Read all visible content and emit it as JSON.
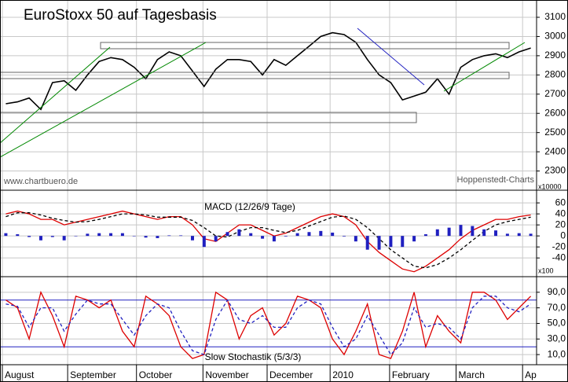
{
  "chart_data": [
    {
      "type": "line",
      "title": "EuroStoxx 50 auf Tagesbasis",
      "source": "www.chartbuero.de",
      "provider": "Hoppenstedt-Charts",
      "x": [
        0,
        1,
        2,
        3,
        4,
        5,
        6,
        7,
        8,
        9,
        10,
        11,
        12,
        13,
        14,
        15,
        16,
        17,
        18,
        19,
        20,
        21,
        22,
        23,
        24,
        25,
        26,
        27,
        28,
        29,
        30,
        31,
        32,
        33,
        34,
        35,
        36,
        37,
        38,
        39,
        40,
        41,
        42,
        43,
        44,
        45
      ],
      "xlim": [
        -0.5,
        45.5
      ],
      "ylim": [
        2200,
        3190
      ],
      "yticks": [
        2300,
        2400,
        2500,
        2600,
        2700,
        2800,
        2900,
        3000,
        3100
      ],
      "grid": true,
      "series": [
        {
          "color": "#000000",
          "values": [
            2650,
            2660,
            2680,
            2620,
            2760,
            2770,
            2720,
            2800,
            2870,
            2890,
            2880,
            2840,
            2780,
            2880,
            2920,
            2900,
            2820,
            2740,
            2830,
            2880,
            2880,
            2870,
            2800,
            2880,
            2850,
            2900,
            2950,
            3000,
            3020,
            3010,
            2970,
            2880,
            2800,
            2760,
            2670,
            2690,
            2710,
            2780,
            2700,
            2840,
            2880,
            2900,
            2910,
            2890,
            2920,
            2940
          ]
        }
      ]
    },
    {
      "type": "line",
      "title": "MACD (12/26/9 Tage)",
      "multiplier": "x10000",
      "x": [
        0,
        1,
        2,
        3,
        4,
        5,
        6,
        7,
        8,
        9,
        10,
        11,
        12,
        13,
        14,
        15,
        16,
        17,
        18,
        19,
        20,
        21,
        22,
        23,
        24,
        25,
        26,
        27,
        28,
        29,
        30,
        31,
        32,
        33,
        34,
        35,
        36,
        37,
        38,
        39,
        40,
        41,
        42,
        43,
        44,
        45
      ],
      "xlim": [
        -0.5,
        45.5
      ],
      "ylim": [
        -74,
        83
      ],
      "yticks": [
        60,
        40,
        20,
        0,
        -20,
        -40
      ],
      "grid": true,
      "series": [
        {
          "color": "#dd0000",
          "values": [
            40,
            45,
            40,
            30,
            30,
            20,
            25,
            30,
            35,
            40,
            45,
            40,
            35,
            30,
            35,
            35,
            20,
            -5,
            -10,
            5,
            20,
            20,
            10,
            0,
            5,
            15,
            25,
            35,
            40,
            35,
            20,
            -10,
            -30,
            -45,
            -60,
            -65,
            -55,
            -40,
            -25,
            -5,
            10,
            20,
            30,
            30,
            35,
            38
          ]
        },
        {
          "color": "#000000",
          "dash": true,
          "values": [
            35,
            42,
            42,
            38,
            32,
            28,
            25,
            26,
            30,
            35,
            40,
            40,
            38,
            34,
            34,
            34,
            28,
            15,
            0,
            -2,
            8,
            15,
            15,
            10,
            6,
            10,
            18,
            26,
            34,
            36,
            30,
            15,
            -5,
            -25,
            -40,
            -55,
            -58,
            -52,
            -40,
            -25,
            -8,
            8,
            20,
            26,
            30,
            34
          ]
        },
        {
          "type": "bar",
          "color": "#2020c0",
          "values": [
            5,
            3,
            -2,
            -8,
            -2,
            -8,
            0,
            4,
            5,
            5,
            5,
            0,
            -3,
            -4,
            1,
            1,
            -8,
            -20,
            -10,
            7,
            12,
            5,
            -5,
            -10,
            -1,
            5,
            7,
            9,
            6,
            -1,
            -10,
            -25,
            -25,
            -20,
            -20,
            -10,
            3,
            12,
            15,
            20,
            18,
            12,
            10,
            4,
            5,
            4
          ]
        }
      ]
    },
    {
      "type": "line",
      "title": "Slow Stochastik (5/3/3)",
      "multiplier": "x100",
      "x": [
        0,
        1,
        2,
        3,
        4,
        5,
        6,
        7,
        8,
        9,
        10,
        11,
        12,
        13,
        14,
        15,
        16,
        17,
        18,
        19,
        20,
        21,
        22,
        23,
        24,
        25,
        26,
        27,
        28,
        29,
        30,
        31,
        32,
        33,
        34,
        35,
        36,
        37,
        38,
        39,
        40,
        41,
        42,
        43,
        44,
        45
      ],
      "xlim": [
        -0.5,
        45.5
      ],
      "ylim": [
        -3,
        110
      ],
      "yticks": [
        {
          "value": 90,
          "label": "90,0"
        },
        {
          "value": 70,
          "label": "70,0"
        },
        {
          "value": 50,
          "label": "50,0"
        },
        {
          "value": 30,
          "label": "30,0"
        },
        {
          "value": 10,
          "label": "10,0"
        }
      ],
      "levels": [
        80,
        20
      ],
      "level_color": "#2020c0",
      "grid": true,
      "xticks": [
        {
          "value": -0.3,
          "label": "August"
        },
        {
          "value": 5.3,
          "label": "September"
        },
        {
          "value": 11.2,
          "label": "October"
        },
        {
          "value": 16.9,
          "label": "November"
        },
        {
          "value": 22.4,
          "label": "December"
        },
        {
          "value": 27.8,
          "label": "2010"
        },
        {
          "value": 32.9,
          "label": "February"
        },
        {
          "value": 38.6,
          "label": "March"
        },
        {
          "value": 44.3,
          "label": "Ap"
        }
      ],
      "series": [
        {
          "color": "#dd0000",
          "values": [
            80,
            70,
            30,
            90,
            60,
            20,
            85,
            80,
            70,
            80,
            40,
            20,
            85,
            75,
            60,
            20,
            5,
            10,
            90,
            80,
            30,
            60,
            70,
            35,
            50,
            85,
            80,
            70,
            30,
            10,
            40,
            75,
            10,
            5,
            40,
            90,
            20,
            60,
            40,
            25,
            90,
            90,
            80,
            55,
            70,
            85
          ]
        },
        {
          "color": "#2020c0",
          "dash": true,
          "values": [
            75,
            72,
            45,
            70,
            70,
            40,
            62,
            80,
            75,
            75,
            55,
            35,
            60,
            75,
            70,
            40,
            15,
            10,
            55,
            80,
            55,
            50,
            60,
            45,
            45,
            70,
            80,
            75,
            45,
            20,
            30,
            60,
            35,
            10,
            25,
            70,
            45,
            50,
            45,
            30,
            70,
            85,
            85,
            70,
            65,
            75
          ]
        }
      ]
    }
  ]
}
